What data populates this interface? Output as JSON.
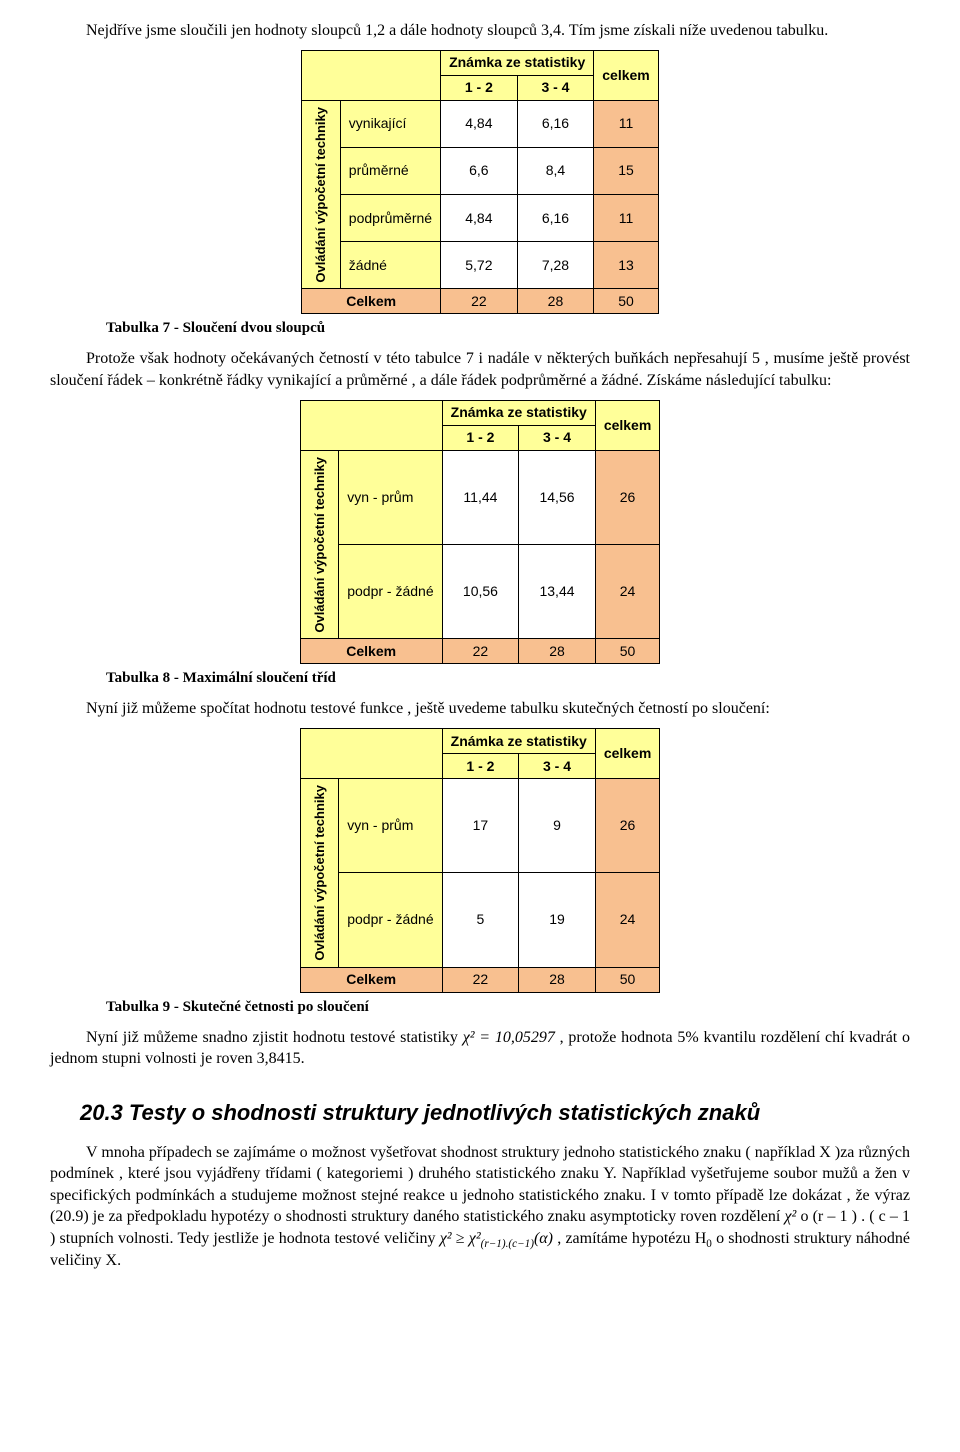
{
  "para1": "Nejdříve jsme sloučili jen hodnoty sloupců 1,2 a dále hodnoty sloupců 3,4. Tím jsme získali níže uvedenou tabulku.",
  "colhead": {
    "stat": "Známka ze statistiky",
    "c1": "1 - 2",
    "c2": "3 - 4",
    "tot": "celkem"
  },
  "sidelabel": "Ovládání výpočetní techniky",
  "t7": {
    "rows": [
      {
        "label": "vynikající",
        "a": "4,84",
        "b": "6,16",
        "t": "11"
      },
      {
        "label": "průměrné",
        "a": "6,6",
        "b": "8,4",
        "t": "15"
      },
      {
        "label": "podprůměrné",
        "a": "4,84",
        "b": "6,16",
        "t": "11"
      },
      {
        "label": "žádné",
        "a": "5,72",
        "b": "7,28",
        "t": "13"
      }
    ],
    "total": {
      "label": "Celkem",
      "a": "22",
      "b": "28",
      "t": "50"
    },
    "caption": "Tabulka 7 - Sloučení dvou sloupců"
  },
  "para2": "Protože však hodnoty očekávaných četností v této tabulce 7 i nadále v některých buňkách nepřesahují 5 , musíme ještě provést sloučení řádek – konkrétně řádky vynikající a průměrné , a dále řádek podprůměrné a žádné. Získáme následující tabulku:",
  "t8": {
    "rows": [
      {
        "label": "vyn - prům",
        "a": "11,44",
        "b": "14,56",
        "t": "26"
      },
      {
        "label": "podpr - žádné",
        "a": "10,56",
        "b": "13,44",
        "t": "24"
      }
    ],
    "total": {
      "label": "Celkem",
      "a": "22",
      "b": "28",
      "t": "50"
    },
    "caption": "Tabulka 8 - Maximální sloučení tříd"
  },
  "para3": "Nyní již můžeme spočítat hodnotu testové funkce , ještě uvedeme tabulku skutečných četností po sloučení:",
  "t9": {
    "rows": [
      {
        "label": "vyn - prům",
        "a": "17",
        "b": "9",
        "t": "26"
      },
      {
        "label": "podpr - žádné",
        "a": "5",
        "b": "19",
        "t": "24"
      }
    ],
    "total": {
      "label": "Celkem",
      "a": "22",
      "b": "28",
      "t": "50"
    },
    "caption": "Tabulka 9 - Skutečné četnosti po sloučení"
  },
  "para4a": "Nyní již můžeme snadno zjistit hodnotu testové statistiky ",
  "para4chi": "χ² = 10,05297",
  "para4b": " , protože hodnota 5% kvantilu rozdělení chí kvadrát o jednom stupni volnosti je roven 3,8415.",
  "heading": "20.3 Testy o shodnosti struktury jednotlivých statistických znaků",
  "para5a": "V mnoha případech se zajímáme o možnost vyšetřovat shodnost struktury jednoho statistického znaku ( například X )za různých podmínek , které jsou vyjádřeny třídami ( kategoriemi ) druhého statistického znaku Y. Například vyšetřujeme soubor mužů a žen v specifických podmínkách a studujeme možnost stejné reakce u jednoho statistického znaku. I v tomto případě lze dokázat , že výraz (20.9) je za předpokladu hypotézy o shodnosti struktury daného statistického znaku asymptoticky roven rozdělení ",
  "para5chi1": "χ²",
  "para5b": " o (r – 1 ) . ( c – 1 ) stupních volnosti. Tedy jestliže je hodnota testové veličiny ",
  "para5chi2": "χ² ≥ χ²",
  "para5sub": "(r−1).(c−1)",
  "para5alpha": "(α)",
  "para5c": ", zamítáme hypotézu H",
  "para5d": " o shodnosti struktury náhodné veličiny X."
}
